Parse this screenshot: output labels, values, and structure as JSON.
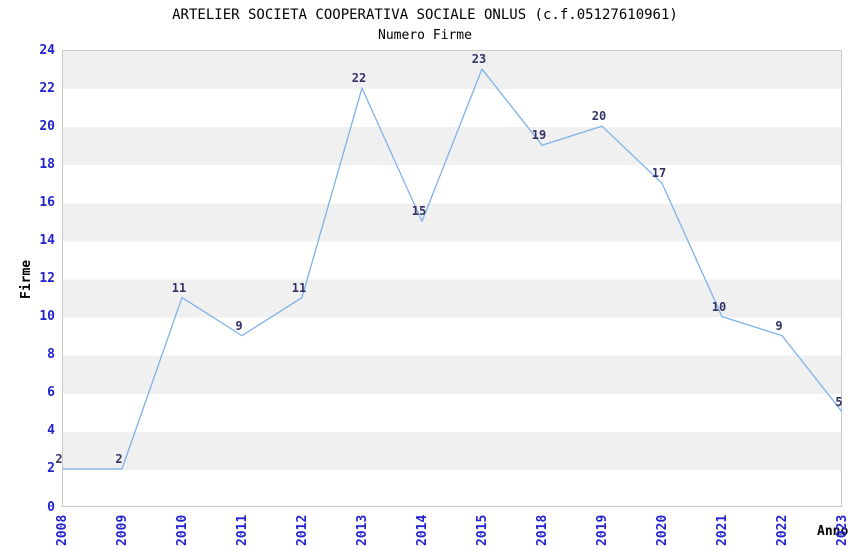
{
  "header": {
    "title": "ARTELIER SOCIETA COOPERATIVA SOCIALE ONLUS (c.f.05127610961)",
    "subtitle": "Numero Firme"
  },
  "chart_data": {
    "type": "line",
    "title": "ARTELIER SOCIETA COOPERATIVA SOCIALE ONLUS (c.f.05127610961)",
    "subtitle": "Numero Firme",
    "xlabel": "Anno",
    "ylabel": "Firme",
    "categories": [
      "2008",
      "2009",
      "2010",
      "2011",
      "2012",
      "2013",
      "2014",
      "2015",
      "2018",
      "2019",
      "2020",
      "2021",
      "2022",
      "2023"
    ],
    "values": [
      2,
      2,
      11,
      9,
      11,
      22,
      15,
      23,
      19,
      20,
      17,
      10,
      9,
      5
    ],
    "ylim": [
      0,
      24
    ],
    "ytick_step": 2,
    "grid": "horizontal-bands-every-2-units",
    "legend_position": "none",
    "colors": {
      "line": "#7FB2E8",
      "tick_labels": "#2323CE",
      "point_labels": "#333366",
      "band_gray": "#F0F0F0",
      "band_white": "#FFFFFF",
      "plot_border": "#C9C9C9",
      "title_text": "#000000"
    }
  }
}
